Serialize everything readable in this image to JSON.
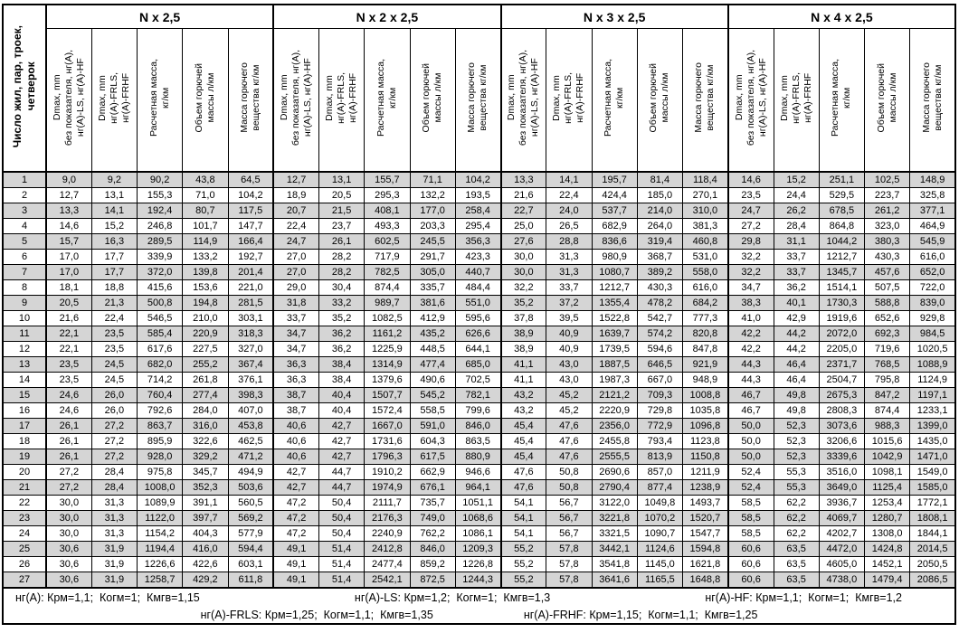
{
  "page": {
    "background": "#ffffff",
    "stripe_color": "#d5d5d5",
    "border_color": "#000000"
  },
  "table": {
    "corner_header": "Число жил, пар, троек,\nчетверок",
    "group_headers": [
      "N x 2,5",
      "N x 2 x 2,5",
      "N x 3 x 2,5",
      "N x 4 x 2,5"
    ],
    "column_headers": [
      "Dmax, mm\nбез показателя, нг(А),\nнг(А)-LS, нг(А)-HF",
      "Dmax, mm\nнг(А)-FRLS,\nнг(А)-FRHF",
      "Расчетная масса,\nкг/км",
      "Объем горючей\nмассы л/км",
      "Масса горючего\nвещества кг/км"
    ],
    "rows": [
      [
        "1",
        "9,0",
        "9,2",
        "90,2",
        "43,8",
        "64,5",
        "12,7",
        "13,1",
        "155,7",
        "71,1",
        "104,2",
        "13,3",
        "14,1",
        "195,7",
        "81,4",
        "118,4",
        "14,6",
        "15,2",
        "251,1",
        "102,5",
        "148,9"
      ],
      [
        "2",
        "12,7",
        "13,1",
        "155,3",
        "71,0",
        "104,2",
        "18,9",
        "20,5",
        "295,3",
        "132,2",
        "193,5",
        "21,6",
        "22,4",
        "424,4",
        "185,0",
        "270,1",
        "23,5",
        "24,4",
        "529,5",
        "223,7",
        "325,8"
      ],
      [
        "3",
        "13,3",
        "14,1",
        "192,4",
        "80,7",
        "117,5",
        "20,7",
        "21,5",
        "408,1",
        "177,0",
        "258,4",
        "22,7",
        "24,0",
        "537,7",
        "214,0",
        "310,0",
        "24,7",
        "26,2",
        "678,5",
        "261,2",
        "377,1"
      ],
      [
        "4",
        "14,6",
        "15,2",
        "246,8",
        "101,7",
        "147,7",
        "22,4",
        "23,7",
        "493,3",
        "203,3",
        "295,4",
        "25,0",
        "26,5",
        "682,9",
        "264,0",
        "381,3",
        "27,2",
        "28,4",
        "864,8",
        "323,0",
        "464,9"
      ],
      [
        "5",
        "15,7",
        "16,3",
        "289,5",
        "114,9",
        "166,4",
        "24,7",
        "26,1",
        "602,5",
        "245,5",
        "356,3",
        "27,6",
        "28,8",
        "836,6",
        "319,4",
        "460,8",
        "29,8",
        "31,1",
        "1044,2",
        "380,3",
        "545,9"
      ],
      [
        "6",
        "17,0",
        "17,7",
        "339,9",
        "133,2",
        "192,7",
        "27,0",
        "28,2",
        "717,9",
        "291,7",
        "423,3",
        "30,0",
        "31,3",
        "980,9",
        "368,7",
        "531,0",
        "32,2",
        "33,7",
        "1212,7",
        "430,3",
        "616,0"
      ],
      [
        "7",
        "17,0",
        "17,7",
        "372,0",
        "139,8",
        "201,4",
        "27,0",
        "28,2",
        "782,5",
        "305,0",
        "440,7",
        "30,0",
        "31,3",
        "1080,7",
        "389,2",
        "558,0",
        "32,2",
        "33,7",
        "1345,7",
        "457,6",
        "652,0"
      ],
      [
        "8",
        "18,1",
        "18,8",
        "415,6",
        "153,6",
        "221,0",
        "29,0",
        "30,4",
        "874,4",
        "335,7",
        "484,4",
        "32,2",
        "33,7",
        "1212,7",
        "430,3",
        "616,0",
        "34,7",
        "36,2",
        "1514,1",
        "507,5",
        "722,0"
      ],
      [
        "9",
        "20,5",
        "21,3",
        "500,8",
        "194,8",
        "281,5",
        "31,8",
        "33,2",
        "989,7",
        "381,6",
        "551,0",
        "35,2",
        "37,2",
        "1355,4",
        "478,2",
        "684,2",
        "38,3",
        "40,1",
        "1730,3",
        "588,8",
        "839,0"
      ],
      [
        "10",
        "21,6",
        "22,4",
        "546,5",
        "210,0",
        "303,1",
        "33,7",
        "35,2",
        "1082,5",
        "412,9",
        "595,6",
        "37,8",
        "39,5",
        "1522,8",
        "542,7",
        "777,3",
        "41,0",
        "42,9",
        "1919,6",
        "652,6",
        "929,8"
      ],
      [
        "11",
        "22,1",
        "23,5",
        "585,4",
        "220,9",
        "318,3",
        "34,7",
        "36,2",
        "1161,2",
        "435,2",
        "626,6",
        "38,9",
        "40,9",
        "1639,7",
        "574,2",
        "820,8",
        "42,2",
        "44,2",
        "2072,0",
        "692,3",
        "984,5"
      ],
      [
        "12",
        "22,1",
        "23,5",
        "617,6",
        "227,5",
        "327,0",
        "34,7",
        "36,2",
        "1225,9",
        "448,5",
        "644,1",
        "38,9",
        "40,9",
        "1739,5",
        "594,6",
        "847,8",
        "42,2",
        "44,2",
        "2205,0",
        "719,6",
        "1020,5"
      ],
      [
        "13",
        "23,5",
        "24,5",
        "682,0",
        "255,2",
        "367,4",
        "36,3",
        "38,4",
        "1314,9",
        "477,4",
        "685,0",
        "41,1",
        "43,0",
        "1887,5",
        "646,5",
        "921,9",
        "44,3",
        "46,4",
        "2371,7",
        "768,5",
        "1088,9"
      ],
      [
        "14",
        "23,5",
        "24,5",
        "714,2",
        "261,8",
        "376,1",
        "36,3",
        "38,4",
        "1379,6",
        "490,6",
        "702,5",
        "41,1",
        "43,0",
        "1987,3",
        "667,0",
        "948,9",
        "44,3",
        "46,4",
        "2504,7",
        "795,8",
        "1124,9"
      ],
      [
        "15",
        "24,6",
        "26,0",
        "760,4",
        "277,4",
        "398,3",
        "38,7",
        "40,4",
        "1507,7",
        "545,2",
        "782,1",
        "43,2",
        "45,2",
        "2121,2",
        "709,3",
        "1008,8",
        "46,7",
        "49,8",
        "2675,3",
        "847,2",
        "1197,1"
      ],
      [
        "16",
        "24,6",
        "26,0",
        "792,6",
        "284,0",
        "407,0",
        "38,7",
        "40,4",
        "1572,4",
        "558,5",
        "799,6",
        "43,2",
        "45,2",
        "2220,9",
        "729,8",
        "1035,8",
        "46,7",
        "49,8",
        "2808,3",
        "874,4",
        "1233,1"
      ],
      [
        "17",
        "26,1",
        "27,2",
        "863,7",
        "316,0",
        "453,8",
        "40,6",
        "42,7",
        "1667,0",
        "591,0",
        "846,0",
        "45,4",
        "47,6",
        "2356,0",
        "772,9",
        "1096,8",
        "50,0",
        "52,3",
        "3073,6",
        "988,3",
        "1399,0"
      ],
      [
        "18",
        "26,1",
        "27,2",
        "895,9",
        "322,6",
        "462,5",
        "40,6",
        "42,7",
        "1731,6",
        "604,3",
        "863,5",
        "45,4",
        "47,6",
        "2455,8",
        "793,4",
        "1123,8",
        "50,0",
        "52,3",
        "3206,6",
        "1015,6",
        "1435,0"
      ],
      [
        "19",
        "26,1",
        "27,2",
        "928,0",
        "329,2",
        "471,2",
        "40,6",
        "42,7",
        "1796,3",
        "617,5",
        "880,9",
        "45,4",
        "47,6",
        "2555,5",
        "813,9",
        "1150,8",
        "50,0",
        "52,3",
        "3339,6",
        "1042,9",
        "1471,0"
      ],
      [
        "20",
        "27,2",
        "28,4",
        "975,8",
        "345,7",
        "494,9",
        "42,7",
        "44,7",
        "1910,2",
        "662,9",
        "946,6",
        "47,6",
        "50,8",
        "2690,6",
        "857,0",
        "1211,9",
        "52,4",
        "55,3",
        "3516,0",
        "1098,1",
        "1549,0"
      ],
      [
        "21",
        "27,2",
        "28,4",
        "1008,0",
        "352,3",
        "503,6",
        "42,7",
        "44,7",
        "1974,9",
        "676,1",
        "964,1",
        "47,6",
        "50,8",
        "2790,4",
        "877,4",
        "1238,9",
        "52,4",
        "55,3",
        "3649,0",
        "1125,4",
        "1585,0"
      ],
      [
        "22",
        "30,0",
        "31,3",
        "1089,9",
        "391,1",
        "560,5",
        "47,2",
        "50,4",
        "2111,7",
        "735,7",
        "1051,1",
        "54,1",
        "56,7",
        "3122,0",
        "1049,8",
        "1493,7",
        "58,5",
        "62,2",
        "3936,7",
        "1253,4",
        "1772,1"
      ],
      [
        "23",
        "30,0",
        "31,3",
        "1122,0",
        "397,7",
        "569,2",
        "47,2",
        "50,4",
        "2176,3",
        "749,0",
        "1068,6",
        "54,1",
        "56,7",
        "3221,8",
        "1070,2",
        "1520,7",
        "58,5",
        "62,2",
        "4069,7",
        "1280,7",
        "1808,1"
      ],
      [
        "24",
        "30,0",
        "31,3",
        "1154,2",
        "404,3",
        "577,9",
        "47,2",
        "50,4",
        "2240,9",
        "762,2",
        "1086,1",
        "54,1",
        "56,7",
        "3321,5",
        "1090,7",
        "1547,7",
        "58,5",
        "62,2",
        "4202,7",
        "1308,0",
        "1844,1"
      ],
      [
        "25",
        "30,6",
        "31,9",
        "1194,4",
        "416,0",
        "594,4",
        "49,1",
        "51,4",
        "2412,8",
        "846,0",
        "1209,3",
        "55,2",
        "57,8",
        "3442,1",
        "1124,6",
        "1594,8",
        "60,6",
        "63,5",
        "4472,0",
        "1424,8",
        "2014,5"
      ],
      [
        "26",
        "30,6",
        "31,9",
        "1226,6",
        "422,6",
        "603,1",
        "49,1",
        "51,4",
        "2477,4",
        "859,2",
        "1226,8",
        "55,2",
        "57,8",
        "3541,8",
        "1145,0",
        "1621,8",
        "60,6",
        "63,5",
        "4605,0",
        "1452,1",
        "2050,5"
      ],
      [
        "27",
        "30,6",
        "31,9",
        "1258,7",
        "429,2",
        "611,8",
        "49,1",
        "51,4",
        "2542,1",
        "872,5",
        "1244,3",
        "55,2",
        "57,8",
        "3641,6",
        "1165,5",
        "1648,8",
        "60,6",
        "63,5",
        "4738,0",
        "1479,4",
        "2086,5"
      ]
    ]
  },
  "footer": {
    "line1": [
      "нг(А): Крм=1,1;  Когм=1;  Кмгв=1,15",
      "нг(А)-LS: Крм=1,2;  Когм=1;  Кмгв=1,3",
      "нг(А)-HF: Крм=1,1;  Когм=1;  Кмгв=1,2"
    ],
    "line2": [
      "нг(А)-FRLS: Крм=1,25;  Когм=1,1;  Кмгв=1,35",
      "нг(А)-FRHF: Крм=1,15;  Когм=1,1;  Кмгв=1,25"
    ]
  }
}
